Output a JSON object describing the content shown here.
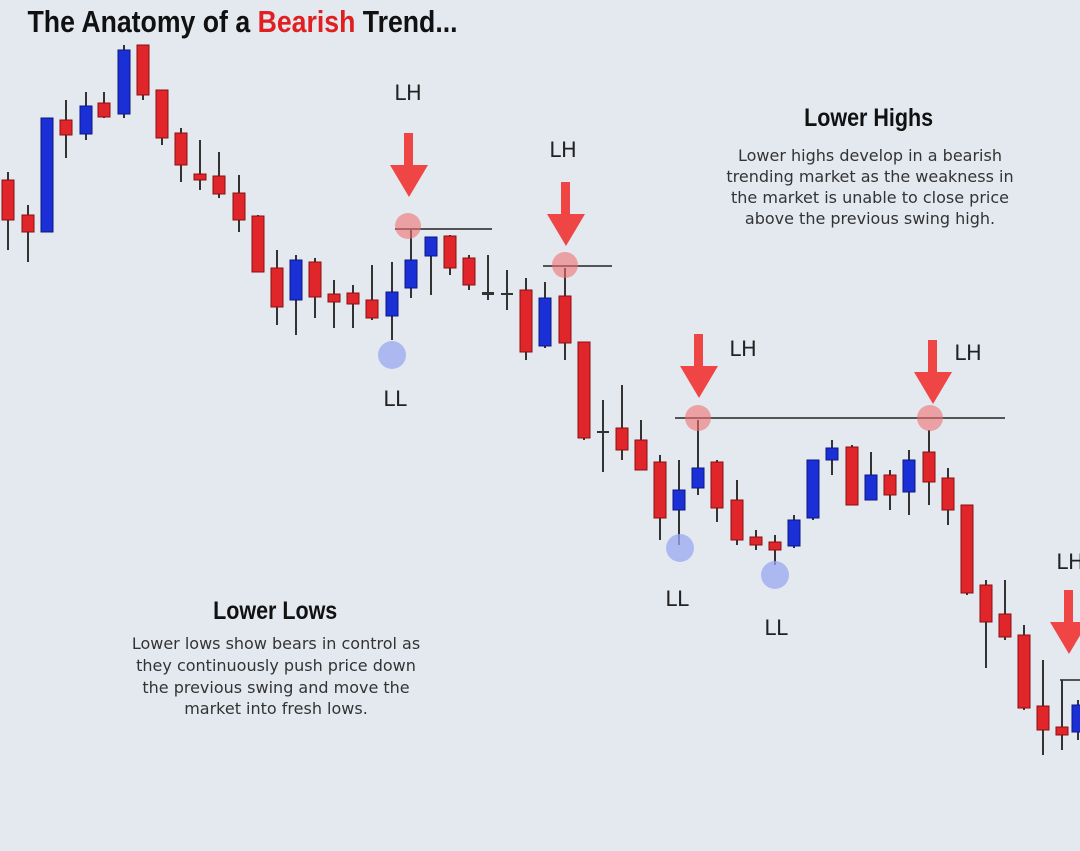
{
  "title": {
    "prefix": "The Anatomy of a ",
    "highlight": "Bearish",
    "suffix": " Trend..."
  },
  "swing_high_labels": [
    "LH",
    "LH",
    "LH",
    "LH",
    "LH"
  ],
  "swing_low_labels": [
    "LL",
    "LL",
    "LL"
  ],
  "lower_highs": {
    "heading": "Lower Highs",
    "lines": [
      "Lower highs develop in a bearish",
      "trending market as the weakness in",
      "the market is unable to close price",
      "above the previous swing high."
    ]
  },
  "lower_lows": {
    "heading": "Lower Lows",
    "lines": [
      "Lower lows show bears in control as",
      "they continuously push price down",
      "the previous swing and move the",
      "market into fresh lows."
    ]
  }
}
